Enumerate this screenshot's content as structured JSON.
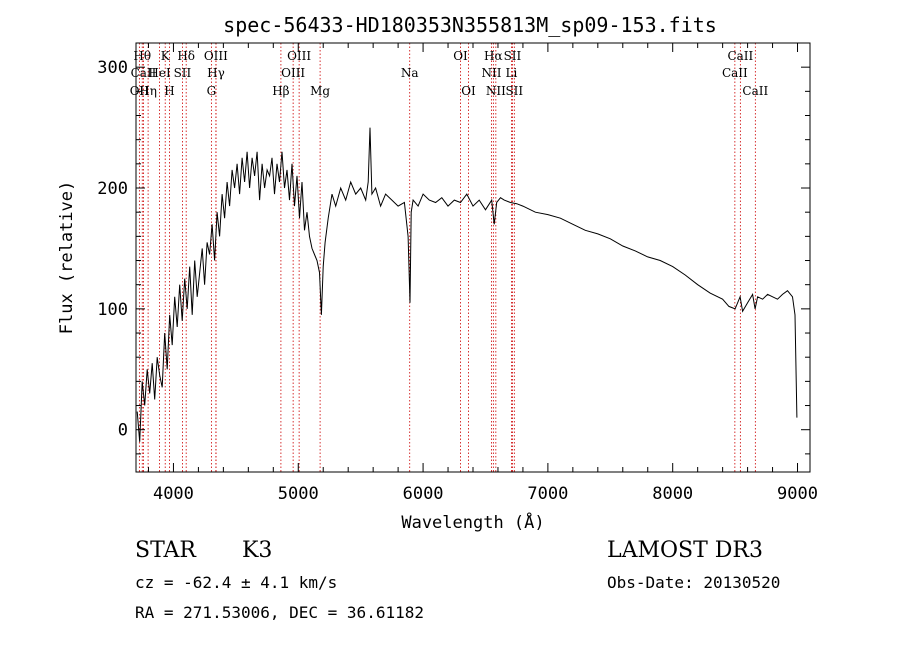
{
  "chart_data": {
    "type": "line",
    "title": "spec-56433-HD180353N355813M_sp09-153.fits",
    "xlabel": "Wavelength (Å)",
    "ylabel": "Flux (relative)",
    "xlim": [
      3700,
      9100
    ],
    "ylim": [
      -35,
      320
    ],
    "xticks": [
      4000,
      5000,
      6000,
      7000,
      8000,
      9000
    ],
    "yticks": [
      0,
      100,
      200,
      300
    ],
    "series": [
      {
        "name": "spectrum",
        "x": [
          3710,
          3730,
          3750,
          3770,
          3790,
          3810,
          3830,
          3850,
          3870,
          3890,
          3910,
          3930,
          3950,
          3970,
          3990,
          4010,
          4030,
          4050,
          4070,
          4090,
          4110,
          4130,
          4150,
          4170,
          4190,
          4210,
          4230,
          4250,
          4270,
          4290,
          4310,
          4330,
          4350,
          4370,
          4390,
          4410,
          4430,
          4450,
          4470,
          4490,
          4510,
          4530,
          4550,
          4570,
          4590,
          4610,
          4630,
          4650,
          4670,
          4690,
          4710,
          4730,
          4750,
          4770,
          4790,
          4810,
          4830,
          4850,
          4870,
          4890,
          4910,
          4930,
          4950,
          4970,
          4990,
          5010,
          5030,
          5050,
          5070,
          5090,
          5110,
          5130,
          5150,
          5170,
          5185,
          5200,
          5215,
          5240,
          5270,
          5300,
          5340,
          5380,
          5420,
          5460,
          5500,
          5540,
          5560,
          5575,
          5590,
          5620,
          5660,
          5700,
          5750,
          5800,
          5850,
          5880,
          5895,
          5905,
          5920,
          5960,
          6000,
          6050,
          6100,
          6150,
          6200,
          6250,
          6300,
          6350,
          6400,
          6450,
          6500,
          6550,
          6570,
          6590,
          6620,
          6650,
          6700,
          6750,
          6800,
          6900,
          7000,
          7100,
          7200,
          7300,
          7400,
          7500,
          7600,
          7700,
          7800,
          7900,
          8000,
          8100,
          8200,
          8300,
          8400,
          8450,
          8500,
          8540,
          8560,
          8600,
          8640,
          8660,
          8680,
          8720,
          8760,
          8800,
          8840,
          8880,
          8920,
          8960,
          8980,
          8995
        ],
        "values": [
          15,
          -10,
          40,
          20,
          50,
          30,
          55,
          25,
          60,
          45,
          35,
          80,
          50,
          95,
          70,
          110,
          85,
          120,
          90,
          125,
          100,
          135,
          95,
          140,
          110,
          130,
          150,
          120,
          155,
          145,
          170,
          140,
          180,
          160,
          195,
          175,
          205,
          185,
          215,
          200,
          220,
          195,
          225,
          205,
          230,
          200,
          225,
          210,
          230,
          190,
          220,
          200,
          215,
          210,
          225,
          195,
          220,
          205,
          230,
          200,
          215,
          190,
          220,
          185,
          210,
          175,
          205,
          165,
          180,
          160,
          150,
          145,
          140,
          130,
          95,
          135,
          155,
          175,
          195,
          185,
          200,
          190,
          205,
          195,
          200,
          190,
          205,
          250,
          195,
          200,
          185,
          195,
          190,
          185,
          188,
          160,
          105,
          180,
          190,
          185,
          195,
          190,
          188,
          192,
          185,
          190,
          188,
          195,
          185,
          190,
          182,
          190,
          170,
          188,
          192,
          190,
          188,
          187,
          185,
          180,
          178,
          175,
          170,
          165,
          162,
          158,
          152,
          148,
          143,
          140,
          135,
          128,
          120,
          113,
          108,
          102,
          100,
          110,
          98,
          105,
          112,
          100,
          110,
          108,
          112,
          110,
          108,
          112,
          115,
          110,
          95,
          10
        ]
      }
    ],
    "lines": [
      {
        "name": "OII",
        "w": 3727,
        "row": 2
      },
      {
        "name": "Hθ",
        "w": 3750,
        "row": 0
      },
      {
        "name": "CaII",
        "w": 3760,
        "row": 1
      },
      {
        "name": "Hη",
        "w": 3797,
        "row": 2
      },
      {
        "name": "HeI",
        "w": 3889,
        "row": 1
      },
      {
        "name": "K",
        "w": 3934,
        "row": 0
      },
      {
        "name": "H",
        "w": 3968,
        "row": 2
      },
      {
        "name": "SII",
        "w": 4072,
        "row": 1
      },
      {
        "name": "Hδ",
        "w": 4102,
        "row": 0
      },
      {
        "name": "G",
        "w": 4304,
        "row": 2
      },
      {
        "name": "OIII",
        "w": 4340,
        "row": 0
      },
      {
        "name": "Hγ",
        "w": 4341,
        "row": 1
      },
      {
        "name": "Hβ",
        "w": 4861,
        "row": 2
      },
      {
        "name": "OIII",
        "w": 4959,
        "row": 1
      },
      {
        "name": "OIII",
        "w": 5007,
        "row": 0
      },
      {
        "name": "Mg",
        "w": 5175,
        "row": 2
      },
      {
        "name": "Na",
        "w": 5893,
        "row": 1
      },
      {
        "name": "OI",
        "w": 6300,
        "row": 0
      },
      {
        "name": "OI",
        "w": 6364,
        "row": 2
      },
      {
        "name": "NII",
        "w": 6548,
        "row": 1
      },
      {
        "name": "Hα",
        "w": 6563,
        "row": 0
      },
      {
        "name": "NII",
        "w": 6583,
        "row": 2
      },
      {
        "name": "SII",
        "w": 6716,
        "row": 0
      },
      {
        "name": "Li",
        "w": 6708,
        "row": 1
      },
      {
        "name": "SII",
        "w": 6731,
        "row": 2
      },
      {
        "name": "CaII",
        "w": 8498,
        "row": 1
      },
      {
        "name": "CaII",
        "w": 8542,
        "row": 0
      },
      {
        "name": "CaII",
        "w": 8662,
        "row": 2
      }
    ]
  },
  "info": {
    "object_class": "STAR",
    "subclass": "K3",
    "redshift": "cz = -62.4 ± 4.1 km/s",
    "coords": "RA = 271.53006, DEC =  36.61182",
    "survey": "LAMOST DR3",
    "obs_date": "Obs-Date: 20130520"
  },
  "colors": {
    "line_marker": "#cc0000",
    "spectrum": "#000000",
    "axes": "#000000"
  }
}
